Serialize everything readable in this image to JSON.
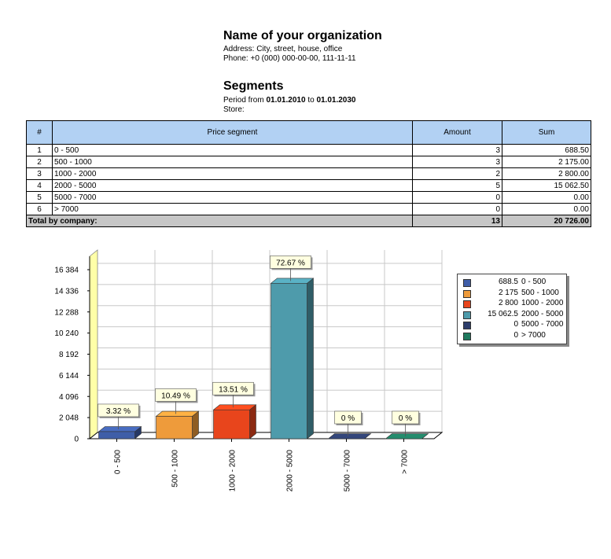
{
  "header": {
    "org_name": "Name of your organization",
    "address": "Address: City, street, house, office",
    "phone": "Phone: +0 (000) 000-00-00, 111-11-11",
    "report_title": "Segments",
    "period_prefix": "Period from",
    "period_from": "01.01.2010",
    "period_to_word": "to",
    "period_to": "01.01.2030",
    "store": "Store:"
  },
  "table": {
    "headers": [
      "#",
      "Price segment",
      "Amount",
      "Sum"
    ],
    "rows": [
      {
        "n": "1",
        "segment": "0 - 500",
        "amount": "3",
        "sum": "688.50"
      },
      {
        "n": "2",
        "segment": "500 - 1000",
        "amount": "3",
        "sum": "2 175.00"
      },
      {
        "n": "3",
        "segment": "1000 - 2000",
        "amount": "2",
        "sum": "2 800.00"
      },
      {
        "n": "4",
        "segment": "2000 - 5000",
        "amount": "5",
        "sum": "15 062.50"
      },
      {
        "n": "5",
        "segment": "5000 - 7000",
        "amount": "0",
        "sum": "0.00"
      },
      {
        "n": "6",
        "segment": "> 7000",
        "amount": "0",
        "sum": "0.00"
      }
    ],
    "total": {
      "label": "Total by company:",
      "amount": "13",
      "sum": "20 726.00"
    }
  },
  "chart_data": {
    "type": "bar",
    "categories": [
      "0 - 500",
      "500 - 1000",
      "1000 - 2000",
      "2000 - 5000",
      "5000 - 7000",
      "> 7000"
    ],
    "values": [
      688.5,
      2175,
      2800,
      15062.5,
      0,
      0
    ],
    "percent_labels": [
      "3.32 %",
      "10.49 %",
      "13.51 %",
      "72.67 %",
      "0 %",
      "0 %"
    ],
    "colors": [
      "#3f5ea8",
      "#ee9b3b",
      "#e8451c",
      "#4e9bab",
      "#2c3d6b",
      "#1f7a5f"
    ],
    "ylim": [
      0,
      16384
    ],
    "yticks": [
      0,
      2048,
      4096,
      6144,
      8192,
      10240,
      12288,
      14336,
      16384
    ],
    "ytick_labels": [
      "0",
      "2 048",
      "4 096",
      "6 144",
      "8 192",
      "10 240",
      "12 288",
      "14 336",
      "16 384"
    ],
    "legend": {
      "position": "right",
      "entries": [
        {
          "value": "688.5",
          "label": "0 - 500"
        },
        {
          "value": "2 175",
          "label": "500 - 1000"
        },
        {
          "value": "2 800",
          "label": "1000 - 2000"
        },
        {
          "value": "15 062.5",
          "label": "2000 - 5000"
        },
        {
          "value": "0",
          "label": "5000 - 7000"
        },
        {
          "value": "0",
          "label": "> 7000"
        }
      ]
    },
    "grid": true,
    "title": "",
    "xlabel": "",
    "ylabel": ""
  }
}
